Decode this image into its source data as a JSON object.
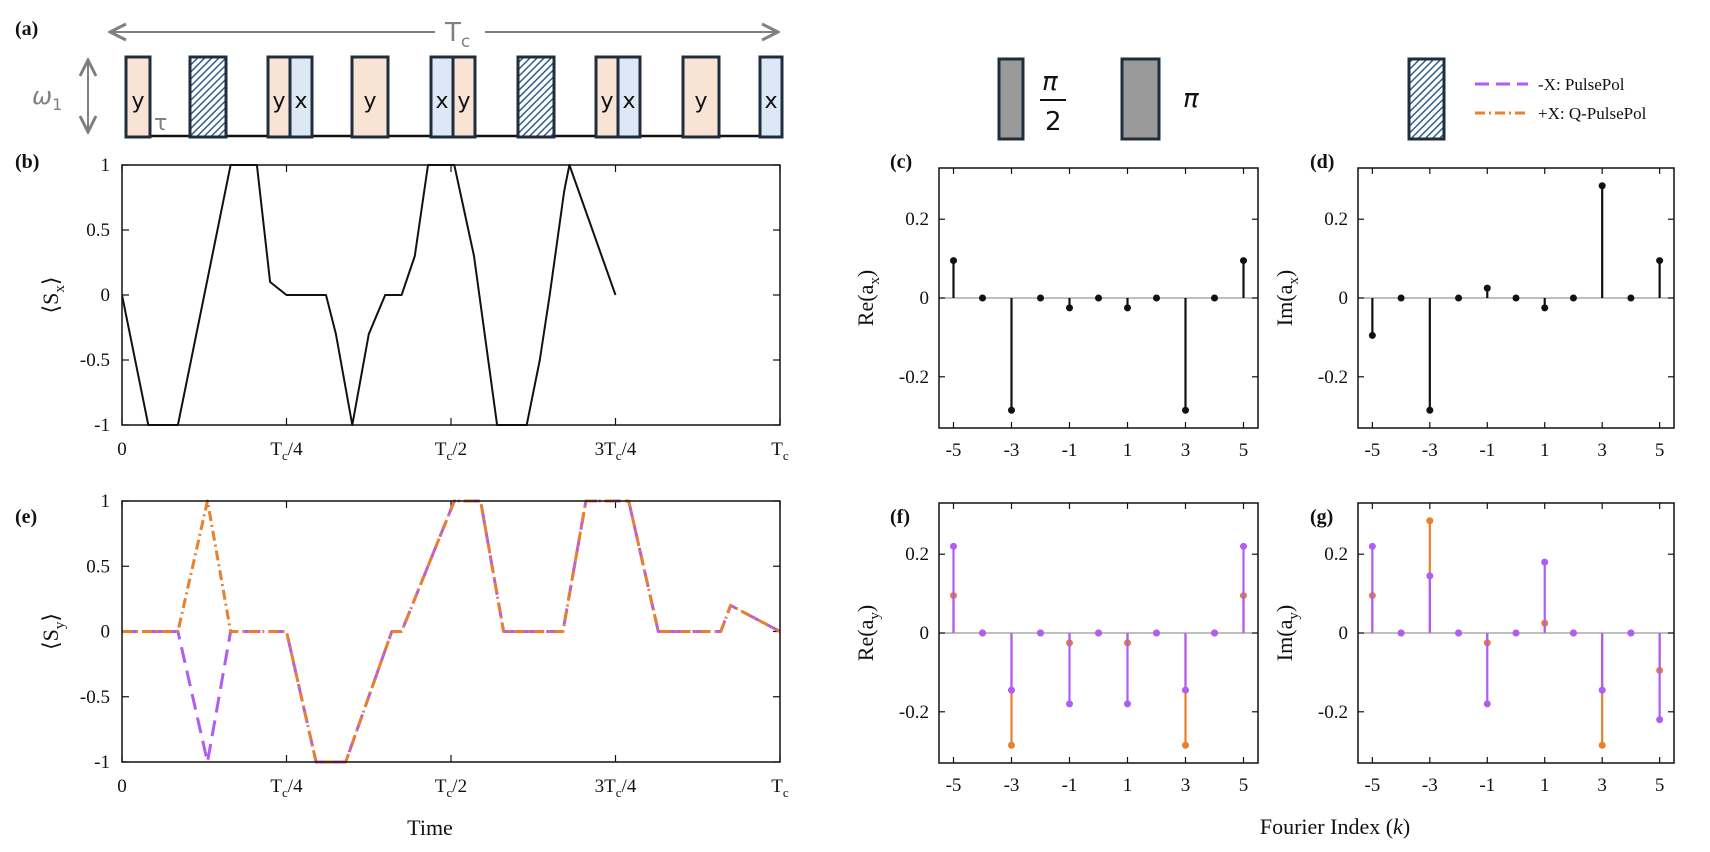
{
  "colors": {
    "axis": "#111111",
    "black_curve": "#111111",
    "purple": "#B15CF2",
    "orange": "#E8802E",
    "pulse_y_fill": "#F8E3D5",
    "pulse_x_fill": "#DCE8F5",
    "pulse_border": "#1f2d3d",
    "hatch_blue": "#2f5f8a",
    "gray_pulse": "#9a9a9a",
    "arrow_gray": "#808080"
  },
  "panel_labels": [
    "(a)",
    "(b)",
    "(c)",
    "(d)",
    "(e)",
    "(f)",
    "(g)"
  ],
  "sequence": {
    "period_label": "T",
    "period_sub": "c",
    "amplitude_label": "ω",
    "amplitude_sub": "1",
    "tau_label": "τ",
    "pulses": [
      "y",
      "hatch",
      "y",
      "x",
      "y",
      "x",
      "y",
      "hatch",
      "y",
      "x",
      "y",
      "x"
    ]
  },
  "legend": {
    "half_pi_num": "π",
    "half_pi_den": "2",
    "pi_label": "π",
    "entries": [
      {
        "label": "-X: PulsePol",
        "color": "#B15CF2",
        "style": "dashed"
      },
      {
        "label": "+X: Q-PulsePol",
        "color": "#E8802E",
        "style": "dashdot"
      }
    ]
  },
  "time_ticks": [
    {
      "main": "0",
      "sub": ""
    },
    {
      "main": "T",
      "sub": "c",
      "tail": "/4"
    },
    {
      "main": "T",
      "sub": "c",
      "tail": "/2"
    },
    {
      "main": "3T",
      "sub": "c",
      "tail": "/4"
    },
    {
      "main": "T",
      "sub": "c",
      "tail": ""
    }
  ],
  "x_axis_title": "Time",
  "fourier_axis_title": "Fourier Index (k)",
  "chart_data": [
    {
      "id": "b",
      "type": "line",
      "ylabel_main": "⟨S",
      "ylabel_sub": "x",
      "ylabel_close": "⟩",
      "xlim": [
        0,
        1
      ],
      "ylim": [
        -1,
        1
      ],
      "yticks": [
        "1",
        "0.5",
        "0",
        "-0.5",
        "-1"
      ],
      "series": [
        {
          "name": "Sx",
          "color": "#111111",
          "style": "solid",
          "x": [
            0,
            0.04,
            0.085,
            0.125,
            0.165,
            0.205,
            0.225,
            0.25,
            0.265,
            0.31,
            0.325,
            0.35,
            0.375,
            0.4,
            0.425,
            0.445,
            0.465,
            0.505,
            0.535,
            0.57,
            0.615,
            0.635,
            0.65,
            0.672,
            0.68,
            0.75
          ],
          "y": [
            0,
            -1,
            -1,
            0,
            1,
            1,
            0.1,
            0,
            0,
            0,
            -0.3,
            -1,
            -0.3,
            0,
            0,
            0.3,
            1,
            1,
            0.3,
            -1,
            -1,
            -0.5,
            0,
            0.8,
            1,
            0
          ]
        }
      ]
    },
    {
      "id": "c",
      "type": "stem",
      "ylabel_main": "Re(a",
      "ylabel_sub": "x",
      "ylabel_close": ")",
      "ylim": [
        -0.33,
        0.33
      ],
      "yticks": [
        0.2,
        0,
        -0.2
      ],
      "xticks": [
        -5,
        -3,
        -1,
        1,
        3,
        5
      ],
      "series": [
        {
          "name": "Re(ax)",
          "color": "#111111",
          "k": [
            -5,
            -4,
            -3,
            -2,
            -1,
            0,
            1,
            2,
            3,
            4,
            5
          ],
          "values": [
            0.095,
            0,
            -0.285,
            0,
            -0.025,
            0,
            -0.025,
            0,
            -0.285,
            0,
            0.095
          ]
        }
      ]
    },
    {
      "id": "d",
      "type": "stem",
      "ylabel_main": "Im(a",
      "ylabel_sub": "x",
      "ylabel_close": ")",
      "ylim": [
        -0.33,
        0.33
      ],
      "yticks": [
        0.2,
        0,
        -0.2
      ],
      "xticks": [
        -5,
        -3,
        -1,
        1,
        3,
        5
      ],
      "series": [
        {
          "name": "Im(ax)",
          "color": "#111111",
          "k": [
            -5,
            -4,
            -3,
            -2,
            -1,
            0,
            1,
            2,
            3,
            4,
            5
          ],
          "values": [
            -0.095,
            0,
            -0.285,
            0,
            0.025,
            0,
            -0.025,
            0,
            0.285,
            0,
            0.095
          ]
        }
      ]
    },
    {
      "id": "e",
      "type": "line",
      "ylabel_main": "⟨S",
      "ylabel_sub": "y",
      "ylabel_close": "⟩",
      "xlim": [
        0,
        1
      ],
      "ylim": [
        -1,
        1
      ],
      "yticks": [
        "1",
        "0.5",
        "0",
        "-0.5",
        "-1"
      ],
      "series": [
        {
          "name": "-X: PulsePol",
          "color": "#B15CF2",
          "style": "dashed",
          "x": [
            0,
            0.085,
            0.13,
            0.165,
            0.25,
            0.295,
            0.34,
            0.41,
            0.425,
            0.505,
            0.545,
            0.58,
            0.585,
            0.67,
            0.705,
            0.77,
            0.815,
            0.91,
            0.925,
            1.0
          ],
          "y": [
            0,
            0,
            -1,
            0,
            0,
            -1,
            -1,
            0,
            0,
            1,
            1,
            0,
            0,
            0,
            1,
            1,
            0,
            0,
            0.2,
            0
          ]
        },
        {
          "name": "+X: Q-PulsePol",
          "color": "#E8802E",
          "style": "dashdot",
          "x": [
            0,
            0.085,
            0.13,
            0.165,
            0.25,
            0.295,
            0.34,
            0.41,
            0.425,
            0.505,
            0.545,
            0.58,
            0.585,
            0.67,
            0.705,
            0.77,
            0.815,
            0.91,
            0.925,
            1.0
          ],
          "y": [
            0,
            0,
            1,
            0,
            0,
            -1,
            -1,
            0,
            0,
            1,
            1,
            0,
            0,
            0,
            1,
            1,
            0,
            0,
            0.2,
            0
          ]
        }
      ]
    },
    {
      "id": "f",
      "type": "stem",
      "ylabel_main": "Re(a",
      "ylabel_sub": "y",
      "ylabel_close": ")",
      "ylim": [
        -0.33,
        0.33
      ],
      "yticks": [
        0.2,
        0,
        -0.2
      ],
      "xticks": [
        -5,
        -3,
        -1,
        1,
        3,
        5
      ],
      "series": [
        {
          "name": "-X: PulsePol",
          "color": "#B15CF2",
          "k": [
            -5,
            -4,
            -3,
            -2,
            -1,
            0,
            1,
            2,
            3,
            4,
            5
          ],
          "values": [
            0.22,
            0,
            -0.145,
            0,
            -0.18,
            0,
            -0.18,
            0,
            -0.145,
            0,
            0.22
          ]
        },
        {
          "name": "+X: Q-PulsePol",
          "color": "#E8802E",
          "k": [
            -5,
            -4,
            -3,
            -2,
            -1,
            0,
            1,
            2,
            3,
            4,
            5
          ],
          "values": [
            0.095,
            0,
            -0.285,
            0,
            -0.025,
            0,
            -0.025,
            0,
            -0.285,
            0,
            0.095
          ]
        }
      ]
    },
    {
      "id": "g",
      "type": "stem",
      "ylabel_main": "Im(a",
      "ylabel_sub": "y",
      "ylabel_close": ")",
      "ylim": [
        -0.33,
        0.33
      ],
      "yticks": [
        0.2,
        0,
        -0.2
      ],
      "xticks": [
        -5,
        -3,
        -1,
        1,
        3,
        5
      ],
      "series": [
        {
          "name": "-X: PulsePol",
          "color": "#B15CF2",
          "k": [
            -5,
            -4,
            -3,
            -2,
            -1,
            0,
            1,
            2,
            3,
            4,
            5
          ],
          "values": [
            0.22,
            0,
            0.145,
            0,
            -0.18,
            0,
            0.18,
            0,
            -0.145,
            0,
            -0.22
          ]
        },
        {
          "name": "+X: Q-PulsePol",
          "color": "#E8802E",
          "k": [
            -5,
            -4,
            -3,
            -2,
            -1,
            0,
            1,
            2,
            3,
            4,
            5
          ],
          "values": [
            0.095,
            0,
            0.285,
            0,
            -0.025,
            0,
            0.025,
            0,
            -0.285,
            0,
            -0.095
          ]
        }
      ]
    }
  ]
}
